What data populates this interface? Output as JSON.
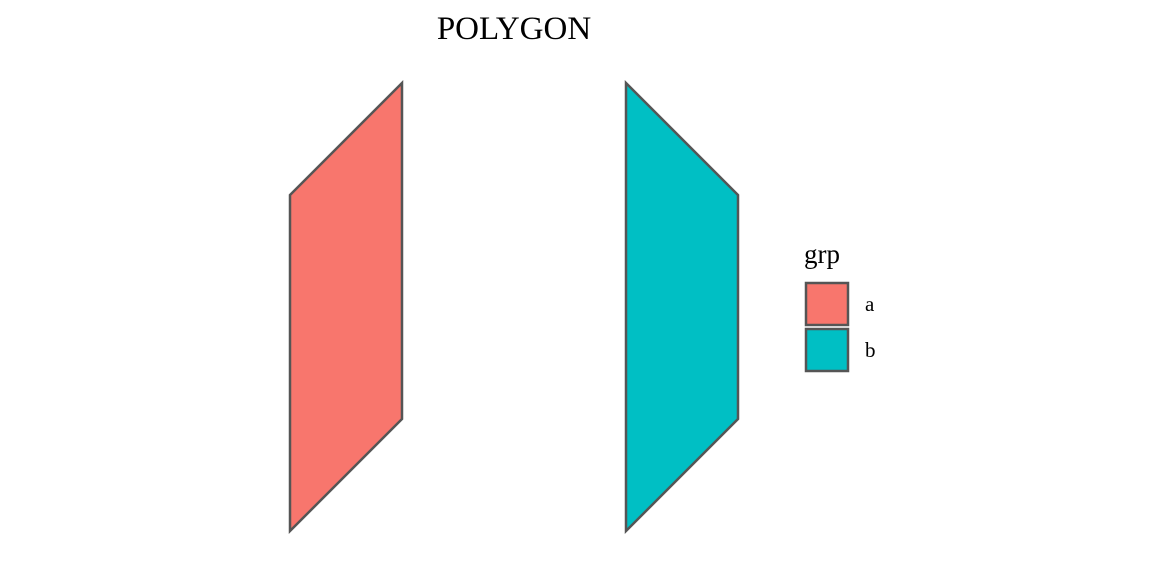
{
  "chart_data": {
    "type": "polygon",
    "title": "POLYGON",
    "xlabel": "",
    "ylabel": "",
    "grid": false,
    "axes_visible": false,
    "xlim": [
      1,
      5
    ],
    "ylim": [
      0,
      4
    ],
    "legend": {
      "title": "grp",
      "placement": "right"
    },
    "outline_color": "#555555",
    "series": [
      {
        "name": "a",
        "color": "#F8766D",
        "points": [
          [
            1,
            0
          ],
          [
            1,
            3
          ],
          [
            2,
            4
          ],
          [
            2,
            1
          ]
        ]
      },
      {
        "name": "b",
        "color": "#00BFC4",
        "points": [
          [
            4,
            0
          ],
          [
            4,
            4
          ],
          [
            5,
            3
          ],
          [
            5,
            1
          ]
        ]
      }
    ]
  }
}
